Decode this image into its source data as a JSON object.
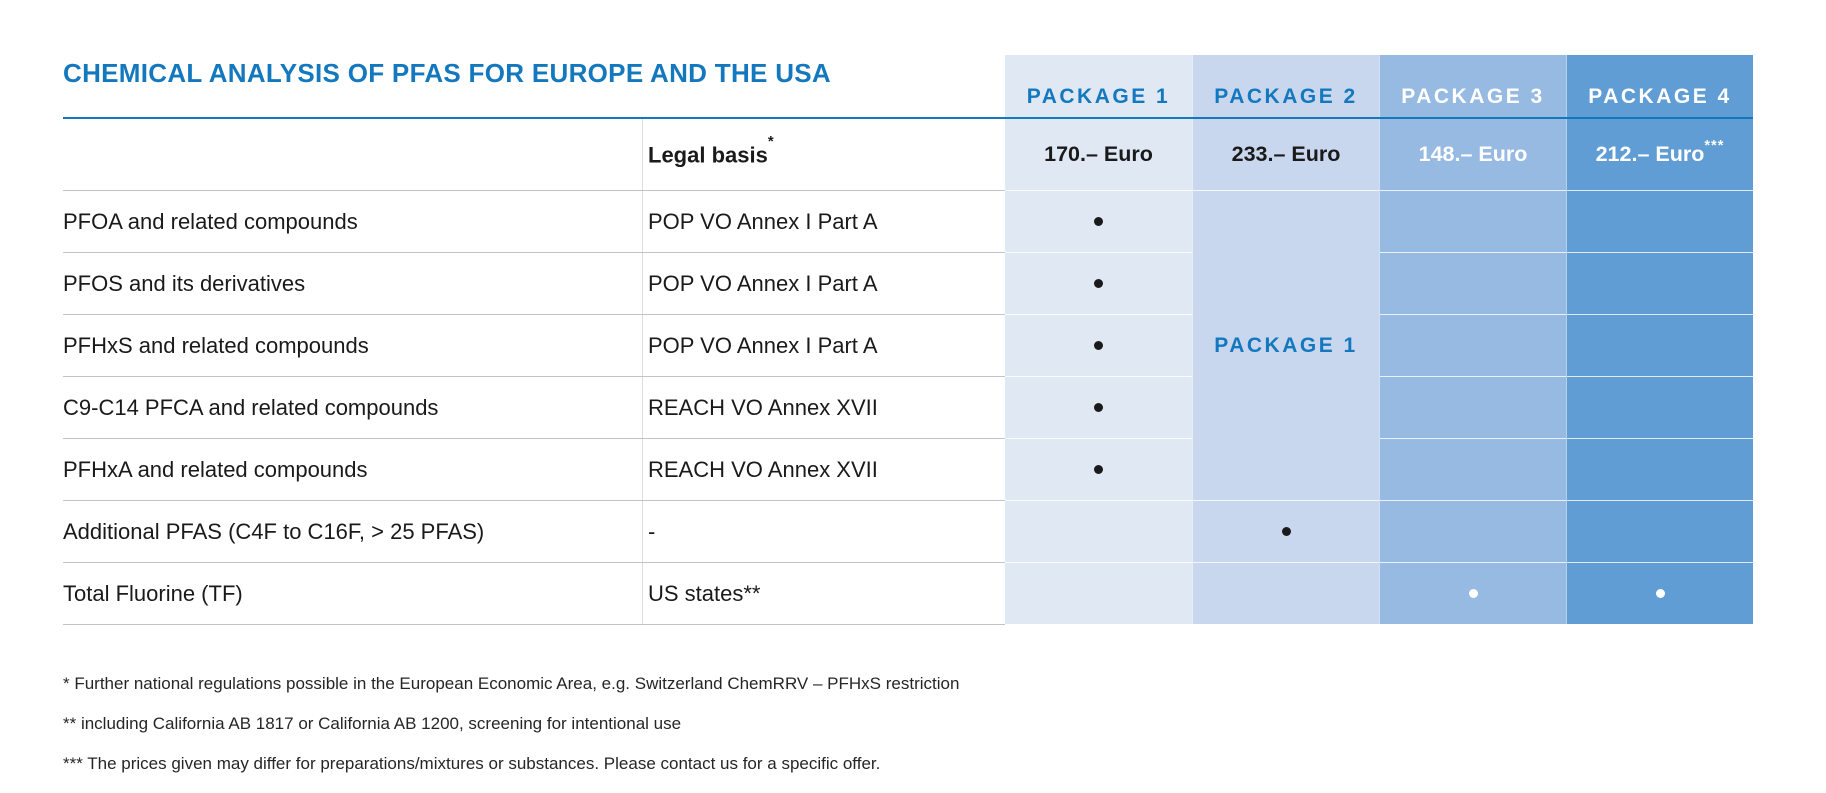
{
  "title": "CHEMICAL ANALYSIS OF PFAS FOR EUROPE AND THE USA",
  "table": {
    "legal_basis_header": {
      "label": "Legal basis",
      "sup": "*"
    },
    "packages": [
      {
        "label": "PACKAGE 1",
        "price": "170.– Euro",
        "price_sup": ""
      },
      {
        "label": "PACKAGE 2",
        "price": "233.– Euro",
        "price_sup": ""
      },
      {
        "label": "PACKAGE 3",
        "price": "148.– Euro",
        "price_sup": ""
      },
      {
        "label": "PACKAGE 4",
        "price": "212.– Euro",
        "price_sup": "***"
      }
    ],
    "merged_cell": {
      "text": "PACKAGE 1",
      "column": "PACKAGE 2",
      "spans_rows": "rows 1-5 (PFOA through PFHxA)"
    },
    "rows": [
      {
        "name": "PFOA and related compounds",
        "legal_basis": "POP VO Annex I Part A",
        "included_in": [
          "PACKAGE 1"
        ]
      },
      {
        "name": "PFOS and its derivatives",
        "legal_basis": "POP VO Annex I Part A",
        "included_in": [
          "PACKAGE 1"
        ]
      },
      {
        "name": "PFHxS and related compounds",
        "legal_basis": "POP VO Annex I Part A",
        "included_in": [
          "PACKAGE 1"
        ]
      },
      {
        "name": "C9-C14 PFCA and related compounds",
        "legal_basis": "REACH VO Annex XVII",
        "included_in": [
          "PACKAGE 1"
        ]
      },
      {
        "name": "PFHxA and related compounds",
        "legal_basis": "REACH VO Annex XVII",
        "included_in": [
          "PACKAGE 1"
        ]
      },
      {
        "name": "Additional PFAS (C4F to C16F, > 25 PFAS)",
        "legal_basis": "-",
        "included_in": [
          "PACKAGE 2"
        ]
      },
      {
        "name": "Total Fluorine (TF)",
        "legal_basis": "US states**",
        "included_in": [
          "PACKAGE 3",
          "PACKAGE 4"
        ]
      }
    ]
  },
  "footnotes": [
    "* Further national regulations possible in the European Economic Area, e.g. Switzerland ChemRRV – PFHxS restriction",
    "** including California AB 1817 or California AB 1200, screening for intentional use",
    "*** The prices given may differ for preparations/mixtures or substances. Please contact us for a specific offer."
  ],
  "colors": {
    "accent_blue": "#1478be",
    "package1_bg": "#e0e8f4",
    "package2_bg": "#c8d7ed",
    "package3_bg": "#97bae2",
    "package4_bg": "#609dd5",
    "dot_dark": "#1a1a1a",
    "dot_light": "#ffffff"
  }
}
